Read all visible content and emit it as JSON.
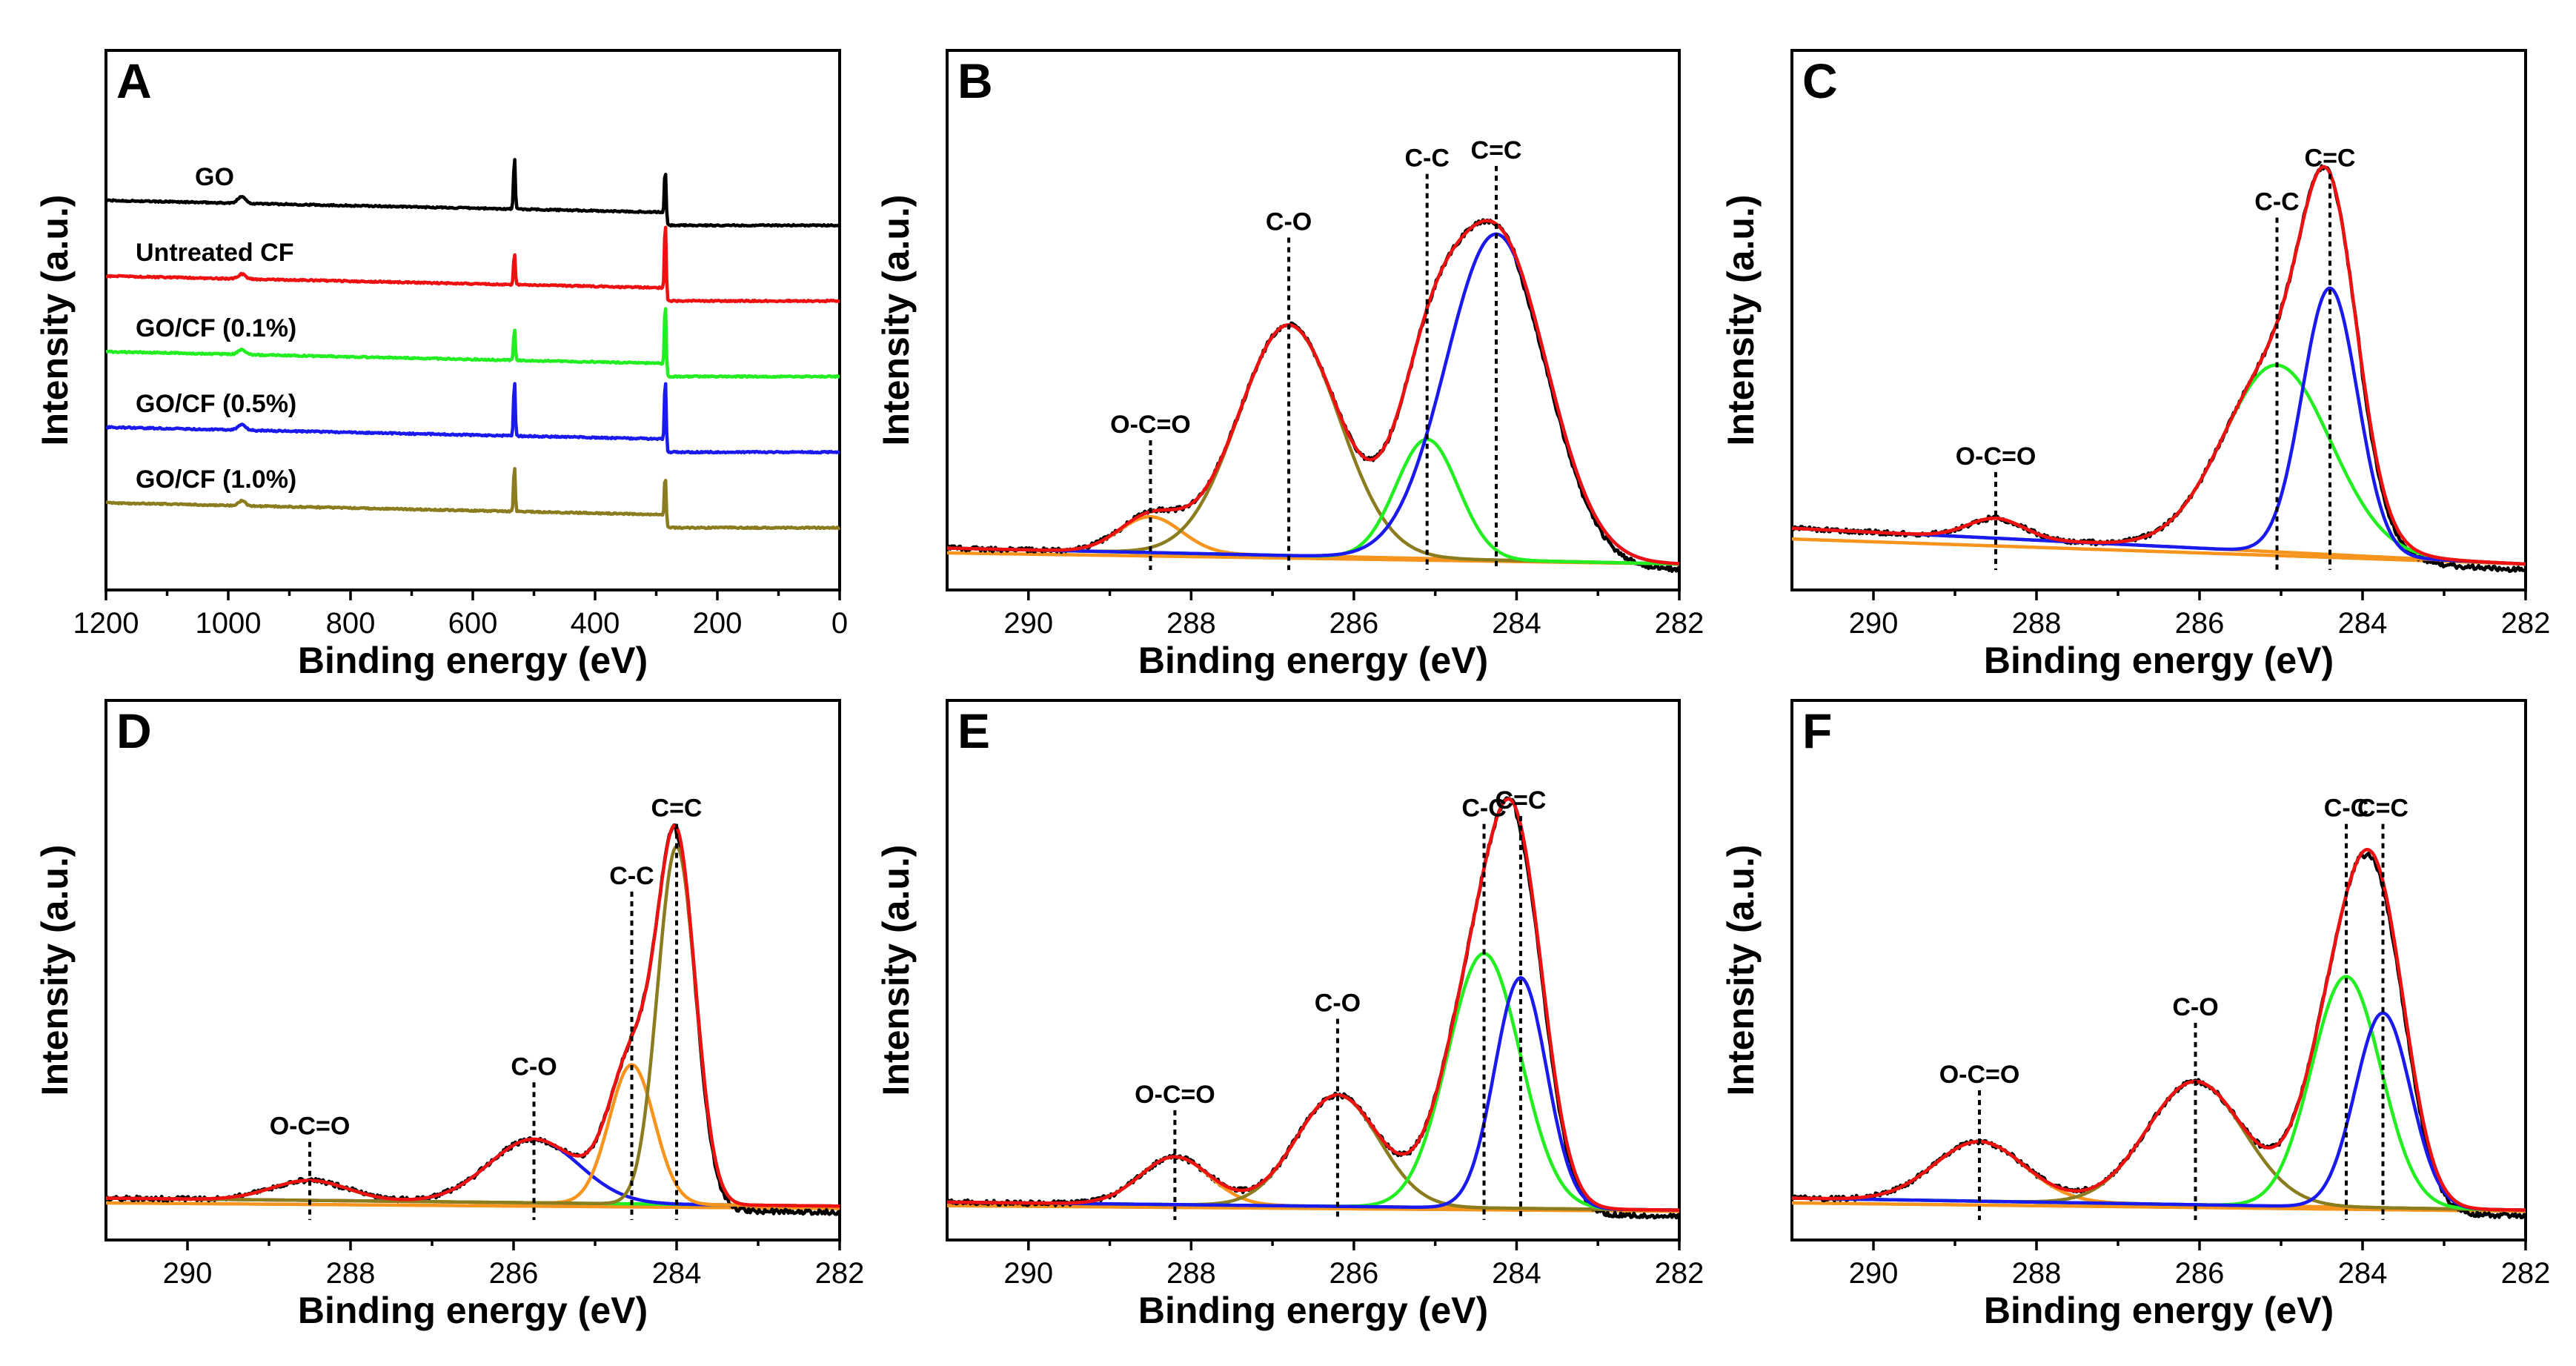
{
  "colors": {
    "black": "#000000",
    "red": "#ee1111",
    "green": "#22ee22",
    "blue": "#1a1aee",
    "olive": "#8b7d1f",
    "orange": "#f7941d"
  },
  "chart_data": [
    {
      "id": "A",
      "type": "line",
      "panel_label": "A",
      "xlabel": "Binding energy (eV)",
      "ylabel": "Intensity (a.u.)",
      "xlim": [
        1200,
        0
      ],
      "xticks": [
        1200,
        1000,
        800,
        600,
        400,
        200,
        0
      ],
      "reversed_x": true,
      "series": [
        {
          "name": "GO",
          "color": "black",
          "offset": 4,
          "peaks": [
            {
              "x": 532,
              "h": 0.9
            },
            {
              "x": 285,
              "h": 0.9
            },
            {
              "x": 978,
              "h": 0.12
            }
          ]
        },
        {
          "name": "Untreated CF",
          "color": "red",
          "offset": 3,
          "peaks": [
            {
              "x": 532,
              "h": 0.55
            },
            {
              "x": 285,
              "h": 1.3
            },
            {
              "x": 978,
              "h": 0.08
            }
          ]
        },
        {
          "name": "GO/CF (0.1%)",
          "color": "green",
          "offset": 2,
          "peaks": [
            {
              "x": 532,
              "h": 0.55
            },
            {
              "x": 285,
              "h": 1.2
            },
            {
              "x": 978,
              "h": 0.08
            }
          ]
        },
        {
          "name": "GO/CF (0.5%)",
          "color": "blue",
          "offset": 1,
          "peaks": [
            {
              "x": 532,
              "h": 0.95
            },
            {
              "x": 285,
              "h": 1.2
            },
            {
              "x": 978,
              "h": 0.1
            }
          ]
        },
        {
          "name": "GO/CF (1.0%)",
          "color": "olive",
          "offset": 0,
          "peaks": [
            {
              "x": 532,
              "h": 0.8
            },
            {
              "x": 285,
              "h": 0.85
            },
            {
              "x": 978,
              "h": 0.08
            }
          ]
        }
      ]
    },
    {
      "id": "B",
      "type": "line",
      "panel_label": "B",
      "xlabel": "Binding energy (eV)",
      "ylabel": "Intensity (a.u.)",
      "xlim": [
        291,
        282
      ],
      "xticks": [
        290,
        288,
        286,
        284,
        282
      ],
      "reversed_x": true,
      "baseline": {
        "start": 0.04,
        "end": 0.0
      },
      "components": [
        {
          "label": "O-C=O",
          "center": 288.5,
          "fwhm": 0.9,
          "height": 0.09,
          "color": "orange"
        },
        {
          "label": "C-O",
          "center": 286.8,
          "fwhm": 1.45,
          "height": 0.58,
          "color": "olive"
        },
        {
          "label": "C-C",
          "center": 285.1,
          "fwhm": 0.9,
          "height": 0.3,
          "color": "green"
        },
        {
          "label": "C=C",
          "center": 284.25,
          "fwhm": 1.45,
          "height": 0.82,
          "color": "blue"
        }
      ],
      "annotations": [
        {
          "text": "O-C=O",
          "x": 288.5,
          "top": 0.33
        },
        {
          "text": "C-O",
          "x": 286.8,
          "top": 0.84
        },
        {
          "text": "C-C",
          "x": 285.1,
          "top": 1.0
        },
        {
          "text": "C=C",
          "x": 284.25,
          "top": 1.02
        }
      ]
    },
    {
      "id": "C",
      "type": "line",
      "panel_label": "C",
      "xlabel": "Binding energy (eV)",
      "ylabel": "Intensity (a.u.)",
      "xlim": [
        291,
        282
      ],
      "xticks": [
        290,
        288,
        286,
        284,
        282
      ],
      "reversed_x": true,
      "baseline": {
        "start": 0.09,
        "end": 0.0
      },
      "components": [
        {
          "label": "O-C=O",
          "center": 288.5,
          "fwhm": 0.8,
          "height": 0.05,
          "color": "orange"
        },
        {
          "label": "C-C",
          "center": 285.05,
          "fwhm": 1.55,
          "height": 0.47,
          "color": "green"
        },
        {
          "label": "C=C",
          "center": 284.4,
          "fwhm": 0.8,
          "height": 0.67,
          "color": "blue"
        }
      ],
      "annotations": [
        {
          "text": "O-C=O",
          "x": 288.5,
          "top": 0.25
        },
        {
          "text": "C-C",
          "x": 285.05,
          "top": 0.89
        },
        {
          "text": "C=C",
          "x": 284.4,
          "top": 1.0
        }
      ]
    },
    {
      "id": "D",
      "type": "line",
      "panel_label": "D",
      "xlabel": "Binding energy (eV)",
      "ylabel": "Intensity (a.u.)",
      "xlim": [
        291,
        282
      ],
      "xticks": [
        290,
        288,
        286,
        284,
        282
      ],
      "reversed_x": true,
      "baseline": {
        "start": 0.04,
        "end": 0.02
      },
      "components": [
        {
          "label": "O-C=O",
          "center": 288.5,
          "fwhm": 1.1,
          "height": 0.05,
          "color": "green"
        },
        {
          "label": "C-O",
          "center": 285.75,
          "fwhm": 1.3,
          "height": 0.16,
          "color": "blue"
        },
        {
          "label": "C-C",
          "center": 284.55,
          "fwhm": 0.65,
          "height": 0.35,
          "color": "orange"
        },
        {
          "label": "C=C",
          "center": 284.0,
          "fwhm": 0.55,
          "height": 0.9,
          "color": "olive"
        }
      ],
      "annotations": [
        {
          "text": "O-C=O",
          "x": 288.5,
          "top": 0.2
        },
        {
          "text": "C-O",
          "x": 285.75,
          "top": 0.35
        },
        {
          "text": "C-C",
          "x": 284.55,
          "top": 0.83
        },
        {
          "text": "C=C",
          "x": 284.0,
          "top": 1.0
        }
      ]
    },
    {
      "id": "E",
      "type": "line",
      "panel_label": "E",
      "xlabel": "Binding energy (eV)",
      "ylabel": "Intensity (a.u.)",
      "xlim": [
        291,
        282
      ],
      "xticks": [
        290,
        288,
        286,
        284,
        282
      ],
      "reversed_x": true,
      "baseline": {
        "start": 0.03,
        "end": 0.01
      },
      "components": [
        {
          "label": "O-C=O",
          "center": 288.2,
          "fwhm": 1.0,
          "height": 0.12,
          "color": "orange"
        },
        {
          "label": "C-O",
          "center": 286.2,
          "fwhm": 1.2,
          "height": 0.28,
          "color": "olive"
        },
        {
          "label": "C-C",
          "center": 284.4,
          "fwhm": 1.05,
          "height": 0.64,
          "color": "green"
        },
        {
          "label": "C=C",
          "center": 283.95,
          "fwhm": 0.75,
          "height": 0.58,
          "color": "blue"
        }
      ],
      "annotations": [
        {
          "text": "O-C=O",
          "x": 288.2,
          "top": 0.28
        },
        {
          "text": "C-O",
          "x": 286.2,
          "top": 0.51
        },
        {
          "text": "C-C",
          "x": 284.4,
          "top": 1.0
        },
        {
          "text": "C=C",
          "x": 283.95,
          "top": 1.02
        }
      ]
    },
    {
      "id": "F",
      "type": "line",
      "panel_label": "F",
      "xlabel": "Binding energy (eV)",
      "ylabel": "Intensity (a.u.)",
      "xlim": [
        291,
        282
      ],
      "xticks": [
        290,
        288,
        286,
        284,
        282
      ],
      "reversed_x": true,
      "baseline": {
        "start": 0.04,
        "end": 0.01
      },
      "components": [
        {
          "label": "O-C=O",
          "center": 288.7,
          "fwhm": 1.3,
          "height": 0.15,
          "color": "orange"
        },
        {
          "label": "C-O",
          "center": 286.05,
          "fwhm": 1.4,
          "height": 0.31,
          "color": "olive"
        },
        {
          "label": "C-C",
          "center": 284.2,
          "fwhm": 1.0,
          "height": 0.58,
          "color": "green"
        },
        {
          "label": "C=C",
          "center": 283.75,
          "fwhm": 0.8,
          "height": 0.49,
          "color": "blue"
        }
      ],
      "annotations": [
        {
          "text": "O-C=O",
          "x": 288.7,
          "top": 0.33
        },
        {
          "text": "C-O",
          "x": 286.05,
          "top": 0.5
        },
        {
          "text": "C-C",
          "x": 284.2,
          "top": 1.0
        },
        {
          "text": "C=C",
          "x": 283.75,
          "top": 1.0
        }
      ]
    }
  ]
}
